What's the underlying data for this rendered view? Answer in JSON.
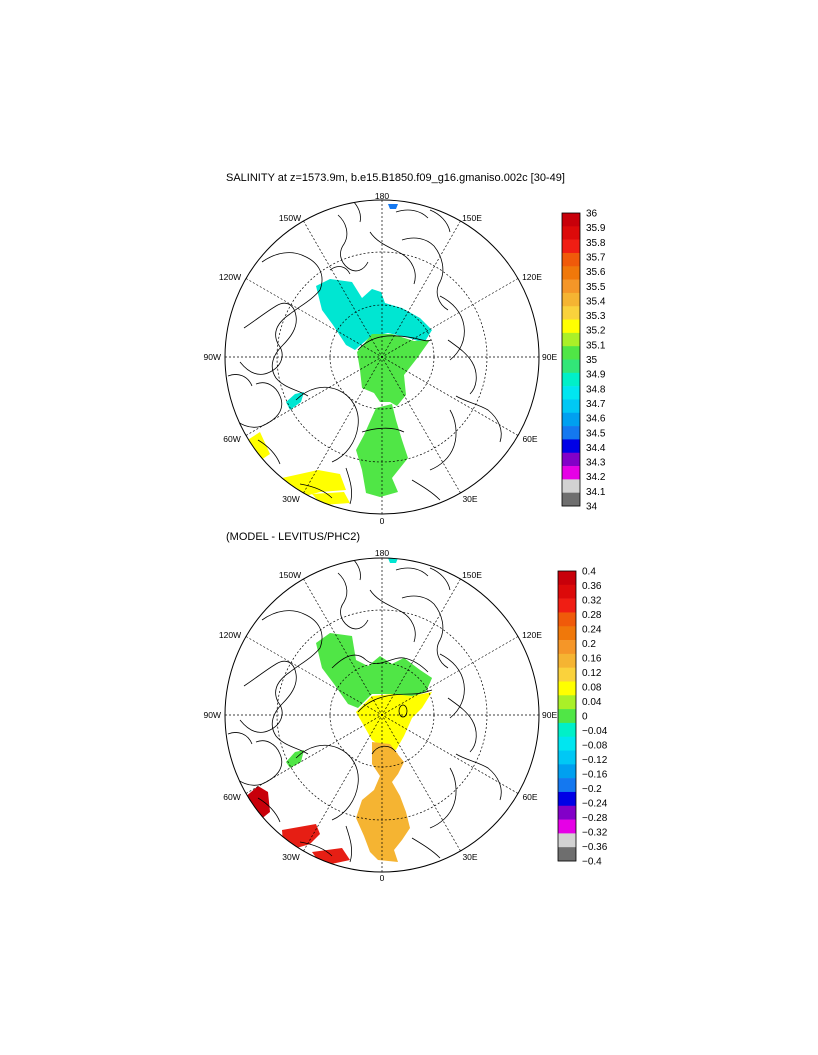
{
  "panels": [
    {
      "title": "SALINITY at z=1573.9m, b.e15.B1850.f09_g16.gmaniso.002c [30-49]",
      "lon_labels": {
        "n": "180",
        "nw": "150W",
        "ne": "150E",
        "wnw": "120W",
        "ene": "120E",
        "w": "90W",
        "e": "90E",
        "wsw": "60W",
        "ese": "60E",
        "sw": "30W",
        "se": "30E",
        "s": "0"
      },
      "colorbar": {
        "labels": [
          "36",
          "35.9",
          "35.8",
          "35.7",
          "35.6",
          "35.5",
          "35.4",
          "35.3",
          "35.2",
          "35.1",
          "35",
          "34.9",
          "34.8",
          "34.7",
          "34.6",
          "34.5",
          "34.4",
          "34.3",
          "34.2",
          "34.1",
          "34"
        ],
        "colors": [
          "#c8000a",
          "#dc0a0a",
          "#f01e14",
          "#f05a0a",
          "#f0780a",
          "#f59628",
          "#f5b432",
          "#fad23c",
          "#ffff00",
          "#aaf028",
          "#50e646",
          "#32e678",
          "#00f0c8",
          "#00e6f0",
          "#00c8f5",
          "#00a0f0",
          "#1478f0",
          "#0000e6",
          "#8200c8",
          "#e600e6",
          "#d2d2d2",
          "#6e6e6e"
        ]
      }
    },
    {
      "title": "(MODEL - LEVITUS/PHC2)",
      "lon_labels": {
        "n": "180",
        "nw": "150W",
        "ne": "150E",
        "wnw": "120W",
        "ene": "120E",
        "w": "90W",
        "e": "90E",
        "wsw": "60W",
        "ese": "60E",
        "sw": "30W",
        "se": "30E",
        "s": "0"
      },
      "colorbar": {
        "labels": [
          "0.4",
          "0.36",
          "0.32",
          "0.28",
          "0.24",
          "0.2",
          "0.16",
          "0.12",
          "0.08",
          "0.04",
          "0",
          "−0.04",
          "−0.08",
          "−0.12",
          "−0.16",
          "−0.2",
          "−0.24",
          "−0.28",
          "−0.32",
          "−0.36",
          "−0.4"
        ],
        "colors": [
          "#c8000a",
          "#dc0a0a",
          "#f01e14",
          "#f05a0a",
          "#f0780a",
          "#f59628",
          "#f5b432",
          "#fad23c",
          "#ffff00",
          "#aaf028",
          "#50e646",
          "#00f0c8",
          "#00e6f0",
          "#00c8f5",
          "#00a0f0",
          "#1478f0",
          "#0000e6",
          "#8200c8",
          "#e600e6",
          "#d2d2d2",
          "#6e6e6e"
        ]
      }
    }
  ],
  "colors": {
    "cyan": "#00e6d2",
    "green": "#50e646",
    "yellow": "#ffff00",
    "orange": "#f5b432",
    "red": "#e61e14",
    "darkred": "#c8000a",
    "blue": "#1478f0"
  }
}
